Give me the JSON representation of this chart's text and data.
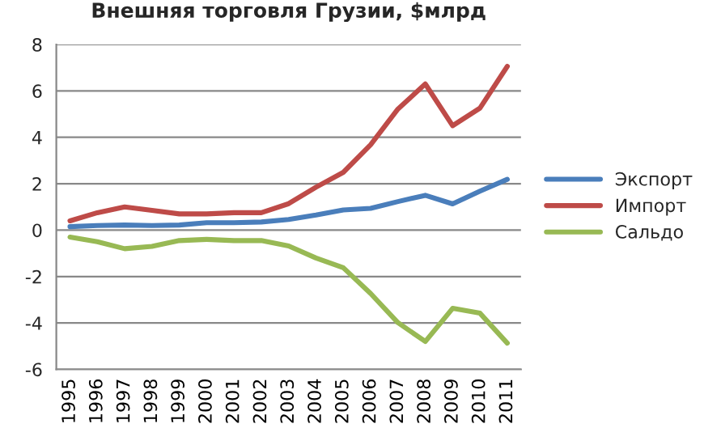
{
  "chart_data": {
    "type": "line",
    "title": "Внешняя торговля Грузии, $млрд",
    "categories": [
      "1995",
      "1996",
      "1997",
      "1998",
      "1999",
      "2000",
      "2001",
      "2002",
      "2003",
      "2004",
      "2005",
      "2006",
      "2007",
      "2008",
      "2009",
      "2010",
      "2011"
    ],
    "series": [
      {
        "name": "Экспорт",
        "color": "#4a7ebb",
        "values": [
          0.15,
          0.2,
          0.22,
          0.2,
          0.22,
          0.32,
          0.32,
          0.35,
          0.46,
          0.65,
          0.87,
          0.94,
          1.23,
          1.5,
          1.13,
          1.68,
          2.19
        ]
      },
      {
        "name": "Импорт",
        "color": "#be4b48",
        "values": [
          0.4,
          0.75,
          1.0,
          0.85,
          0.7,
          0.7,
          0.75,
          0.75,
          1.14,
          1.85,
          2.49,
          3.68,
          5.22,
          6.3,
          4.5,
          5.26,
          7.06
        ]
      },
      {
        "name": "Сальдо",
        "color": "#98b954",
        "values": [
          -0.3,
          -0.5,
          -0.8,
          -0.7,
          -0.45,
          -0.4,
          -0.45,
          -0.45,
          -0.68,
          -1.2,
          -1.62,
          -2.73,
          -3.99,
          -4.8,
          -3.37,
          -3.58,
          -4.87
        ]
      }
    ],
    "ylim": [
      -6,
      8
    ],
    "yticks": [
      -6,
      -4,
      -2,
      0,
      2,
      4,
      6,
      8
    ],
    "grid": "y",
    "legend": "right",
    "marker": "none",
    "line_style": "solid"
  }
}
